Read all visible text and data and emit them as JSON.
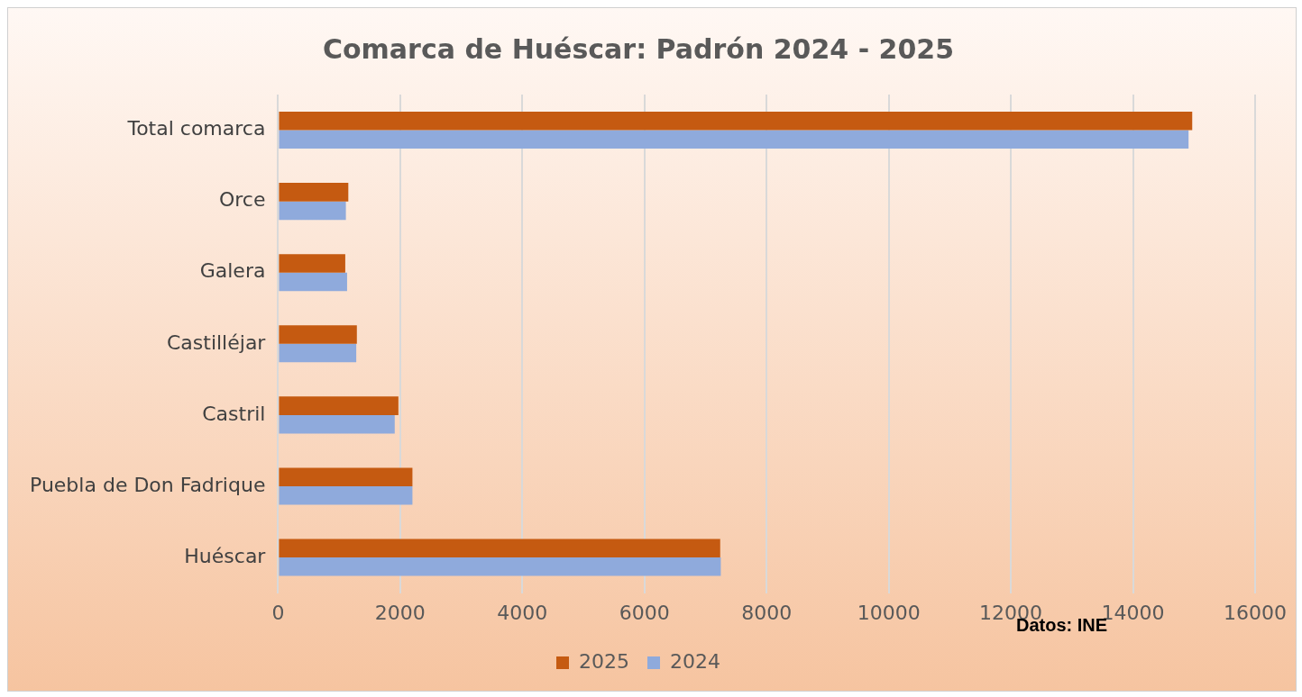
{
  "chart_data": {
    "type": "bar",
    "orientation": "horizontal",
    "title": "Comarca de Huéscar: Padrón 2024 - 2025",
    "categories": [
      "Total comarca",
      "Orce",
      "Galera",
      "Castilléjar",
      "Castril",
      "Puebla de Don Fadrique",
      "Huéscar"
    ],
    "series": [
      {
        "name": "2025",
        "color": "#c55a11",
        "values": [
          14970,
          1150,
          1100,
          1290,
          1970,
          2200,
          7240
        ]
      },
      {
        "name": "2024",
        "color": "#8faadc",
        "values": [
          14910,
          1110,
          1130,
          1280,
          1910,
          2200,
          7250
        ]
      }
    ],
    "xlim": [
      0,
      16000
    ],
    "xticks": [
      0,
      2000,
      4000,
      6000,
      8000,
      10000,
      12000,
      14000,
      16000
    ],
    "grid": "x",
    "legend": "bottom",
    "annotations": [
      "Datos: INE"
    ]
  }
}
